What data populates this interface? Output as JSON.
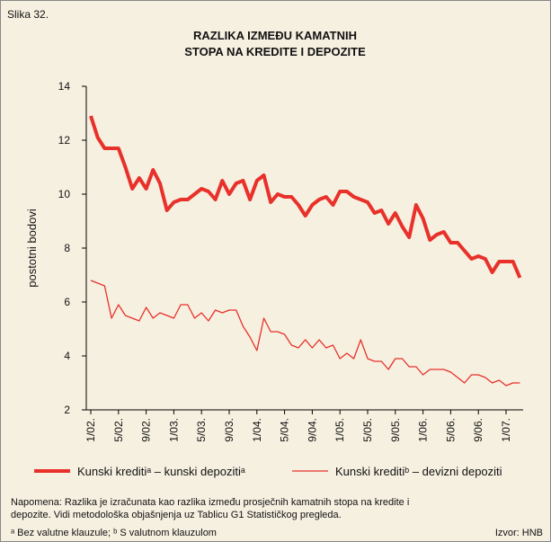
{
  "chart_data": {
    "type": "line",
    "figure_label": "Slika 32.",
    "title": [
      "RAZLIKA IZMEĐU KAMATNIH",
      "STOPA NA KREDITE I DEPOZITE"
    ],
    "y_label": "postotni bodovi",
    "categories": [
      "1/02.",
      null,
      null,
      null,
      "5/02.",
      null,
      null,
      null,
      "9/02.",
      null,
      null,
      null,
      "1/03.",
      null,
      null,
      null,
      "5/03.",
      null,
      null,
      null,
      "9/03.",
      null,
      null,
      null,
      "1/04.",
      null,
      null,
      null,
      "5/04.",
      null,
      null,
      null,
      "9/04.",
      null,
      null,
      null,
      "1/05.",
      null,
      null,
      null,
      "5/05.",
      null,
      null,
      null,
      "9/05.",
      null,
      null,
      null,
      "1/06.",
      null,
      null,
      null,
      "5/06.",
      null,
      null,
      null,
      "9/06.",
      null,
      null,
      null,
      "1/07.",
      null,
      null
    ],
    "series": [
      {
        "name": "Kunski kreditiᵃ – kunski depozitiᵃ",
        "color": "#e8312a",
        "width": 4,
        "values": [
          12.9,
          12.1,
          11.7,
          11.7,
          11.7,
          11.0,
          10.2,
          10.6,
          10.2,
          10.9,
          10.4,
          9.4,
          9.7,
          9.8,
          9.8,
          10.0,
          10.2,
          10.1,
          9.8,
          10.5,
          10.0,
          10.4,
          10.5,
          9.8,
          10.5,
          10.7,
          9.7,
          10.0,
          9.9,
          9.9,
          9.6,
          9.2,
          9.6,
          9.8,
          9.9,
          9.6,
          10.1,
          10.1,
          9.9,
          9.8,
          9.7,
          9.3,
          9.4,
          8.9,
          9.3,
          8.8,
          8.4,
          9.6,
          9.1,
          8.3,
          8.5,
          8.6,
          8.2,
          8.2,
          7.9,
          7.6,
          7.7,
          7.6,
          7.1,
          7.5,
          7.5,
          7.5,
          6.9
        ]
      },
      {
        "name": "Kunski kreditiᵇ – devizni depoziti",
        "color": "#e8312a",
        "width": 1.3,
        "values": [
          6.8,
          6.7,
          6.6,
          5.4,
          5.9,
          5.5,
          5.4,
          5.3,
          5.8,
          5.4,
          5.6,
          5.5,
          5.4,
          5.9,
          5.9,
          5.4,
          5.6,
          5.3,
          5.7,
          5.6,
          5.7,
          5.7,
          5.1,
          4.7,
          4.2,
          5.4,
          4.9,
          4.9,
          4.8,
          4.4,
          4.3,
          4.6,
          4.3,
          4.6,
          4.3,
          4.4,
          3.9,
          4.1,
          3.9,
          4.6,
          3.9,
          3.8,
          3.8,
          3.5,
          3.9,
          3.9,
          3.6,
          3.6,
          3.3,
          3.5,
          3.5,
          3.5,
          3.4,
          3.2,
          3.0,
          3.3,
          3.3,
          3.2,
          3.0,
          3.1,
          2.9,
          3.0,
          3.0
        ]
      }
    ],
    "ylim": [
      2,
      14
    ],
    "yticks": [
      2,
      4,
      6,
      8,
      10,
      12,
      14
    ],
    "note": [
      "Napomena: Razlika je izračunata kao razlika između prosječnih kamatnih stopa na kredite i",
      "depozite. Vidi metodološka objašnjenja uz Tablicu G1 Statističkog pregleda."
    ],
    "footnote": "ᵃ Bez valutne klauzule; ᵇ S valutnom klauzulom",
    "source": "Izvor: HNB"
  }
}
